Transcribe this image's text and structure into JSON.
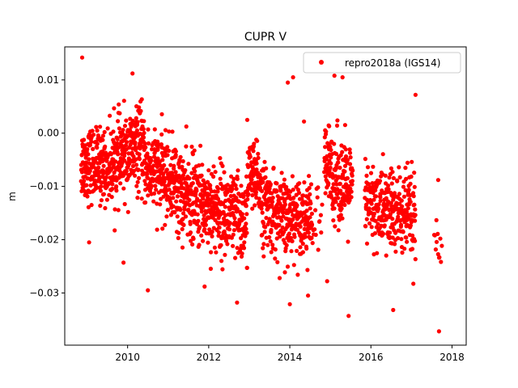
{
  "chart_data": {
    "type": "scatter",
    "title": "CUPR V",
    "xlabel": "",
    "ylabel": "m",
    "xlim": [
      2008.45,
      2018.35
    ],
    "ylim": [
      -0.0398,
      0.0162
    ],
    "x_ticks": [
      2010,
      2012,
      2014,
      2016,
      2018
    ],
    "x_tick_labels": [
      "2010",
      "2012",
      "2014",
      "2016",
      "2018"
    ],
    "y_ticks": [
      -0.03,
      -0.02,
      -0.01,
      0.0,
      0.01
    ],
    "y_tick_labels": [
      "−0.03",
      "−0.02",
      "−0.01",
      "0.00",
      "0.01"
    ],
    "grid": false,
    "legend": {
      "position": "top-right",
      "entries": [
        "repro2018a (IGS14)"
      ]
    },
    "series": [
      {
        "name": "repro2018a (IGS14)",
        "color": "#ff0000",
        "marker": "circle",
        "segments": [
          {
            "x_start": 2008.85,
            "x_end": 2009.6,
            "center_start": -0.0055,
            "center_end": -0.0065,
            "spread": 0.0045,
            "density": 280
          },
          {
            "x_start": 2009.6,
            "x_end": 2010.4,
            "center_start": -0.0055,
            "center_end": -0.0025,
            "spread": 0.005,
            "density": 280
          },
          {
            "x_start": 2010.4,
            "x_end": 2011.2,
            "center_start": -0.006,
            "center_end": -0.0095,
            "spread": 0.005,
            "density": 270
          },
          {
            "x_start": 2011.2,
            "x_end": 2012.0,
            "center_start": -0.011,
            "center_end": -0.0135,
            "spread": 0.0055,
            "density": 270
          },
          {
            "x_start": 2012.0,
            "x_end": 2012.95,
            "center_start": -0.0135,
            "center_end": -0.017,
            "spread": 0.0055,
            "density": 270
          },
          {
            "x_start": 2012.95,
            "x_end": 2013.3,
            "center_start": -0.007,
            "center_end": -0.01,
            "spread": 0.0045,
            "density": 270
          },
          {
            "x_start": 2013.3,
            "x_end": 2014.0,
            "center_start": -0.013,
            "center_end": -0.017,
            "spread": 0.005,
            "density": 260
          },
          {
            "x_start": 2014.0,
            "x_end": 2014.55,
            "center_start": -0.015,
            "center_end": -0.016,
            "spread": 0.0045,
            "density": 250
          },
          {
            "x_start": 2014.55,
            "x_end": 2014.8,
            "center_start": -0.016,
            "center_end": -0.018,
            "spread": 0.005,
            "density": 60
          },
          {
            "x_start": 2014.85,
            "x_end": 2015.55,
            "center_start": -0.006,
            "center_end": -0.011,
            "spread": 0.0055,
            "density": 250
          },
          {
            "x_start": 2015.85,
            "x_end": 2016.2,
            "center_start": -0.013,
            "center_end": -0.014,
            "spread": 0.005,
            "density": 230
          },
          {
            "x_start": 2016.2,
            "x_end": 2017.1,
            "center_start": -0.014,
            "center_end": -0.016,
            "spread": 0.0055,
            "density": 250
          },
          {
            "x_start": 2017.55,
            "x_end": 2017.75,
            "center_start": -0.022,
            "center_end": -0.024,
            "spread": 0.004,
            "density": 60
          }
        ],
        "outliers": [
          [
            2008.88,
            0.0142
          ],
          [
            2009.05,
            -0.0205
          ],
          [
            2009.9,
            -0.0243
          ],
          [
            2010.12,
            0.0112
          ],
          [
            2010.5,
            -0.0295
          ],
          [
            2011.9,
            -0.0288
          ],
          [
            2012.7,
            -0.0318
          ],
          [
            2013.95,
            0.0095
          ],
          [
            2014.0,
            -0.0321
          ],
          [
            2014.08,
            0.0105
          ],
          [
            2014.35,
            0.0022
          ],
          [
            2014.45,
            -0.0305
          ],
          [
            2015.1,
            0.0108
          ],
          [
            2015.3,
            0.0105
          ],
          [
            2015.45,
            -0.0343
          ],
          [
            2016.55,
            -0.0332
          ],
          [
            2017.1,
            0.0072
          ],
          [
            2017.68,
            -0.0372
          ],
          [
            2017.66,
            -0.0088
          ],
          [
            2014.92,
            -0.0278
          ],
          [
            2013.75,
            -0.0272
          ],
          [
            2012.95,
            0.0025
          ]
        ]
      }
    ]
  }
}
